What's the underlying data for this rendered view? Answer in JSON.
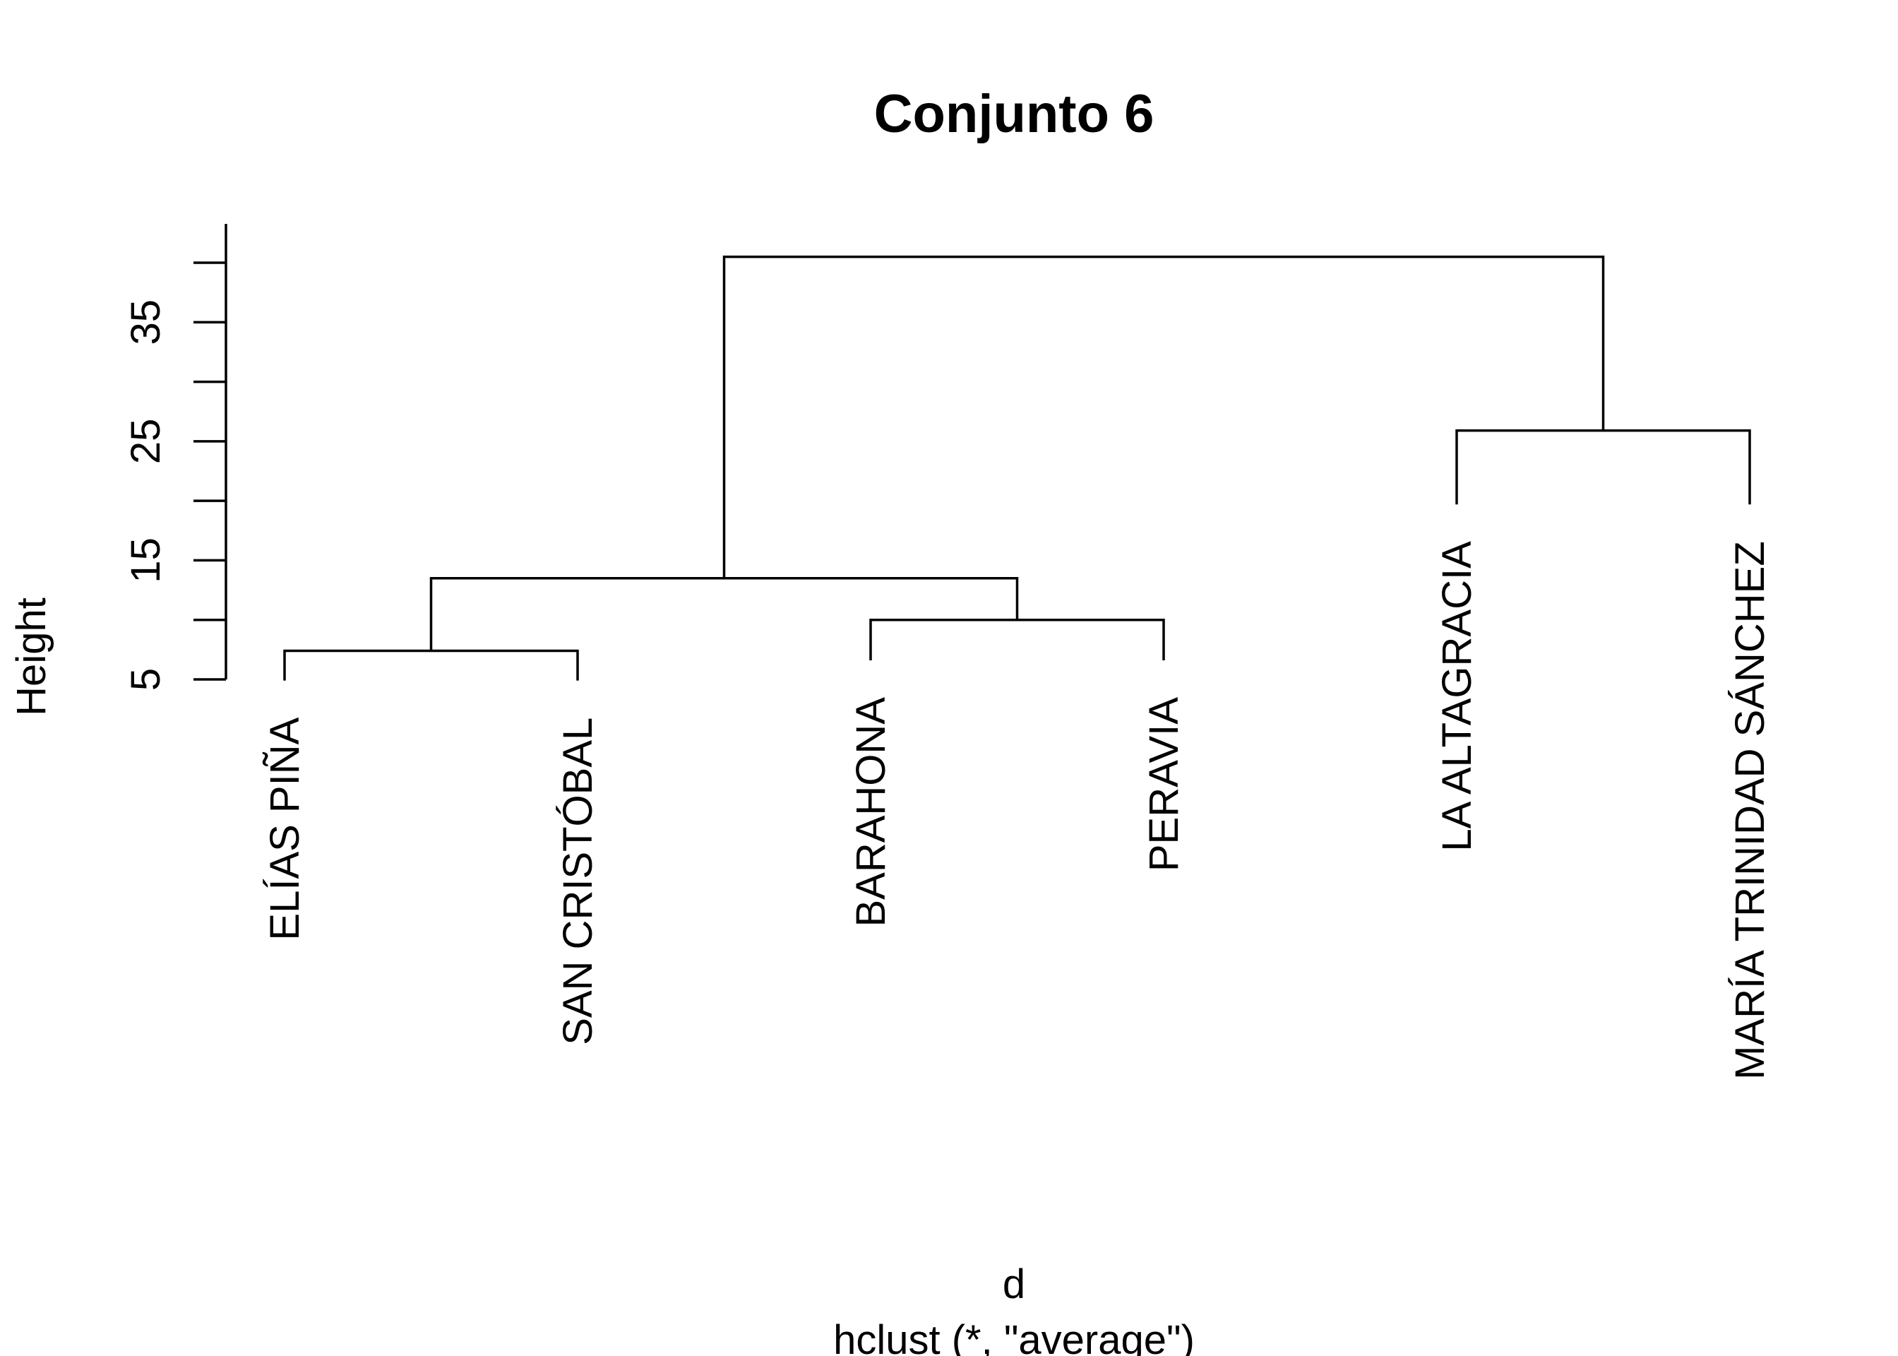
{
  "chart_data": {
    "type": "dendrogram",
    "title": "Conjunto 6",
    "xlabel": "d",
    "sublabel": "hclust (*, \"average\")",
    "ylabel": "Height",
    "ylim": [
      5,
      40
    ],
    "yticks_labeled": [
      5,
      15,
      25,
      35
    ],
    "yticks_all": [
      5,
      10,
      15,
      20,
      25,
      30,
      35,
      40
    ],
    "leaves": [
      {
        "label": "ELÍAS PIÑA",
        "height": 4.9
      },
      {
        "label": "SAN CRISTÓBAL",
        "height": 4.9
      },
      {
        "label": "BARAHONA",
        "height": 6.6
      },
      {
        "label": "PERAVIA",
        "height": 6.6
      },
      {
        "label": "LA ALTAGRACIA",
        "height": 19.7
      },
      {
        "label": "MARÍA TRINIDAD SÁNCHEZ",
        "height": 19.7
      }
    ],
    "merges": [
      {
        "left": "leaf:0",
        "right": "leaf:1",
        "height": 7.4
      },
      {
        "left": "leaf:2",
        "right": "leaf:3",
        "height": 10.0
      },
      {
        "left": "node:0",
        "right": "node:1",
        "height": 13.5
      },
      {
        "left": "leaf:4",
        "right": "leaf:5",
        "height": 25.9
      },
      {
        "left": "node:2",
        "right": "node:3",
        "height": 40.5
      }
    ]
  }
}
